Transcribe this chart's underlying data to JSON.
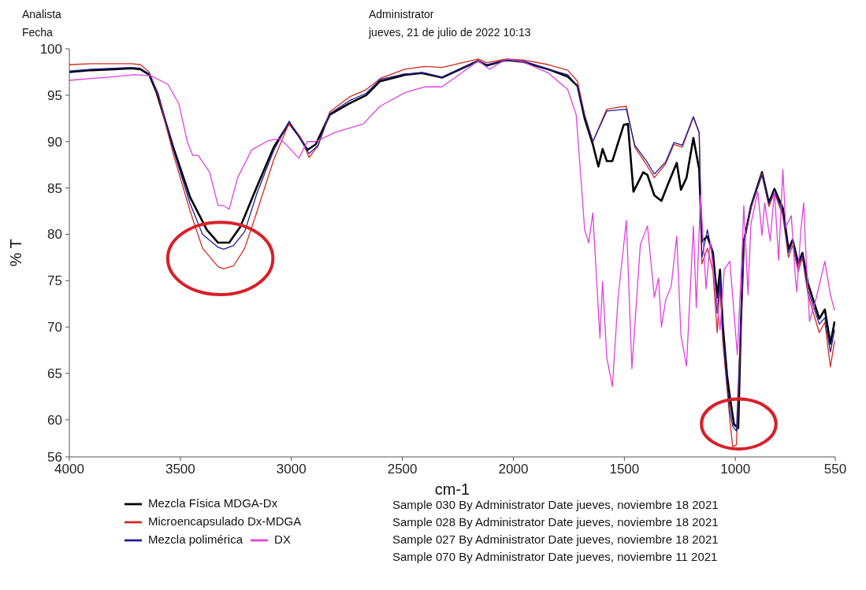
{
  "chart_data": {
    "type": "line",
    "xlabel": "cm-1",
    "ylabel": "% T",
    "xlim": [
      4000,
      550
    ],
    "xticks": [
      4000,
      3500,
      3000,
      2500,
      2000,
      1500,
      1000,
      550
    ],
    "ylim": [
      56,
      100
    ],
    "yticks": [
      56,
      60,
      65,
      70,
      75,
      80,
      85,
      90,
      95,
      100
    ],
    "legend": "bottom",
    "marker": "none",
    "line_style": "solid",
    "annotations": [
      "Analista",
      "Fecha",
      "Administrator",
      "jueves, 21 de julio de 2022 10:13",
      "Sample 030 By Administrator Date jueves, noviembre 18 2021",
      "Sample 028 By Administrator Date jueves, noviembre 18 2021",
      "Sample 027 By Administrator Date jueves, noviembre 18 2021",
      "Sample 070 By Administrator Date jueves, noviembre 11 2021"
    ],
    "series": [
      {
        "name": "Mezcla Física MDGA-Dx",
        "color": "#000000",
        "x": [
          4000,
          3900,
          3800,
          3720,
          3680,
          3640,
          3607,
          3532,
          3456,
          3381,
          3330,
          3280,
          3230,
          3154,
          3079,
          3010,
          2966,
          2928,
          2890,
          2827,
          2739,
          2663,
          2601,
          2487,
          2412,
          2321,
          2158,
          2120,
          2032,
          1956,
          1843,
          1755,
          1711,
          1679,
          1642,
          1617,
          1598,
          1579,
          1554,
          1503,
          1484,
          1459,
          1415,
          1396,
          1365,
          1333,
          1302,
          1264,
          1245,
          1220,
          1189,
          1163,
          1151,
          1126,
          1101,
          1082,
          1069,
          1057,
          1038,
          1025,
          1006,
          987,
          975,
          962,
          930,
          880,
          849,
          824,
          786,
          761,
          742,
          717,
          698,
          673,
          622,
          597,
          572,
          553
        ],
        "values": [
          97.5,
          97.7,
          97.8,
          97.9,
          97.8,
          97.2,
          95.3,
          89.4,
          84.0,
          80.5,
          79.1,
          79.1,
          80.8,
          85.2,
          89.4,
          92.0,
          90.6,
          89.1,
          89.7,
          92.9,
          94.1,
          95.0,
          96.5,
          97.2,
          97.4,
          96.9,
          98.7,
          98.2,
          98.8,
          98.6,
          97.8,
          97.0,
          96.0,
          92.5,
          89.7,
          87.3,
          89.2,
          87.9,
          87.9,
          91.8,
          91.9,
          84.6,
          86.7,
          86.4,
          84.2,
          83.6,
          85.5,
          87.7,
          84.8,
          86.1,
          90.4,
          87.0,
          79.2,
          79.8,
          78.0,
          73.2,
          76.2,
          70.3,
          64.9,
          62.5,
          59.5,
          59.1,
          70.3,
          79.2,
          83.0,
          86.7,
          83.4,
          84.9,
          82.8,
          78.4,
          79.4,
          76.9,
          78.0,
          74.7,
          70.9,
          71.9,
          68.2,
          70.6
        ]
      },
      {
        "name": "Microencapsulado Dx-MDGA",
        "color": "#d42a1e",
        "x": [
          4000,
          3900,
          3800,
          3720,
          3680,
          3640,
          3600,
          3530,
          3456,
          3400,
          3330,
          3305,
          3260,
          3210,
          3154,
          3080,
          3010,
          2960,
          2920,
          2880,
          2827,
          2739,
          2663,
          2600,
          2490,
          2400,
          2321,
          2158,
          2120,
          2032,
          1956,
          1843,
          1755,
          1711,
          1679,
          1642,
          1579,
          1528,
          1491,
          1453,
          1403,
          1365,
          1314,
          1277,
          1239,
          1189,
          1163,
          1151,
          1126,
          1101,
          1082,
          1069,
          1057,
          1038,
          1025,
          1012,
          995,
          975,
          962,
          930,
          880,
          849,
          824,
          786,
          761,
          742,
          717,
          698,
          673,
          622,
          597,
          572,
          553
        ],
        "values": [
          98.3,
          98.4,
          98.4,
          98.4,
          98.3,
          97.5,
          95.0,
          88.5,
          82.5,
          78.5,
          76.5,
          76.3,
          76.6,
          78.5,
          82.5,
          88.0,
          92.0,
          90.5,
          88.3,
          89.5,
          93.2,
          94.8,
          95.6,
          96.8,
          97.8,
          98.1,
          98.0,
          98.9,
          98.5,
          98.9,
          98.8,
          98.3,
          97.7,
          96.5,
          92.9,
          90.0,
          93.5,
          93.7,
          93.8,
          89.4,
          87.6,
          86.1,
          87.6,
          89.7,
          89.4,
          92.6,
          90.9,
          76.8,
          78.5,
          76.0,
          69.4,
          74.5,
          68.5,
          63.5,
          60.0,
          57.1,
          57.3,
          70.0,
          79.0,
          82.8,
          86.6,
          83.0,
          84.5,
          82.0,
          77.5,
          78.8,
          76.0,
          77.5,
          73.5,
          69.4,
          70.5,
          65.7,
          68.5
        ]
      },
      {
        "name": "Mezcla polimérica",
        "color": "#1c1c9c",
        "x": [
          4000,
          3900,
          3800,
          3720,
          3680,
          3640,
          3600,
          3530,
          3456,
          3400,
          3330,
          3305,
          3260,
          3210,
          3154,
          3080,
          3010,
          2960,
          2920,
          2880,
          2827,
          2739,
          2663,
          2600,
          2490,
          2400,
          2321,
          2158,
          2120,
          2032,
          1956,
          1843,
          1755,
          1711,
          1679,
          1642,
          1579,
          1528,
          1491,
          1453,
          1403,
          1365,
          1314,
          1277,
          1239,
          1189,
          1163,
          1151,
          1126,
          1101,
          1082,
          1069,
          1057,
          1038,
          1025,
          1012,
          995,
          975,
          962,
          930,
          880,
          849,
          824,
          786,
          761,
          742,
          717,
          698,
          673,
          622,
          597,
          572,
          553
        ],
        "values": [
          97.6,
          97.8,
          97.9,
          98.0,
          97.9,
          97.3,
          95.2,
          89.0,
          83.3,
          80.0,
          78.6,
          78.4,
          78.8,
          80.3,
          84.5,
          89.0,
          92.2,
          90.3,
          88.7,
          89.6,
          93.0,
          94.4,
          95.2,
          96.7,
          97.3,
          97.4,
          96.9,
          98.7,
          98.3,
          98.8,
          98.7,
          97.8,
          97.2,
          96.0,
          92.8,
          90.0,
          93.3,
          93.4,
          93.5,
          89.6,
          88.0,
          86.5,
          87.8,
          89.9,
          89.6,
          92.7,
          91.0,
          77.5,
          80.5,
          77.5,
          71.5,
          75.5,
          69.5,
          64.0,
          61.0,
          59.3,
          58.8,
          70.5,
          79.3,
          83.0,
          86.4,
          83.3,
          84.7,
          82.3,
          78.0,
          79.2,
          76.5,
          77.8,
          74.0,
          70.3,
          71.0,
          67.3,
          69.7
        ]
      },
      {
        "name": "DX",
        "color": "#e040e0",
        "x": [
          4000,
          3900,
          3800,
          3708,
          3633,
          3557,
          3507,
          3469,
          3444,
          3419,
          3368,
          3330,
          3305,
          3280,
          3242,
          3179,
          3104,
          3054,
          3028,
          2978,
          2966,
          2928,
          2890,
          2802,
          2676,
          2601,
          2487,
          2400,
          2321,
          2158,
          2107,
          2032,
          1956,
          1843,
          1755,
          1717,
          1692,
          1679,
          1661,
          1642,
          1610,
          1598,
          1579,
          1554,
          1528,
          1491,
          1466,
          1428,
          1396,
          1365,
          1346,
          1333,
          1314,
          1289,
          1264,
          1245,
          1220,
          1189,
          1176,
          1157,
          1132,
          1113,
          1094,
          1069,
          1050,
          1025,
          991,
          968,
          962,
          943,
          930,
          899,
          880,
          868,
          843,
          824,
          805,
          786,
          773,
          748,
          729,
          723,
          705,
          692,
          685,
          666,
          635,
          597,
          572,
          553
        ],
        "values": [
          96.6,
          96.8,
          97.0,
          97.2,
          97.1,
          96.2,
          94.1,
          90.0,
          88.5,
          88.5,
          86.7,
          83.1,
          83.1,
          82.7,
          86.1,
          89.1,
          90.1,
          90.3,
          89.8,
          88.5,
          88.2,
          90.0,
          90.0,
          91.0,
          91.9,
          93.8,
          95.3,
          95.9,
          95.9,
          98.7,
          97.8,
          98.9,
          98.6,
          97.4,
          95.6,
          92.9,
          84.9,
          80.5,
          79.1,
          82.3,
          68.8,
          74.9,
          66.7,
          63.6,
          73.2,
          81.5,
          65.5,
          78.9,
          80.9,
          73.2,
          75.3,
          70.0,
          72.9,
          74.4,
          79.8,
          69.1,
          65.8,
          80.9,
          72.1,
          84.2,
          74.1,
          79.2,
          75.0,
          69.7,
          76.2,
          77.1,
          67.0,
          79.2,
          83.1,
          73.5,
          81.1,
          84.6,
          79.9,
          83.4,
          79.3,
          84.6,
          77.2,
          87.0,
          80.8,
          82.0,
          75.1,
          73.8,
          80.5,
          83.4,
          79.2,
          70.6,
          73.2,
          77.1,
          73.5,
          71.8
        ]
      }
    ]
  }
}
